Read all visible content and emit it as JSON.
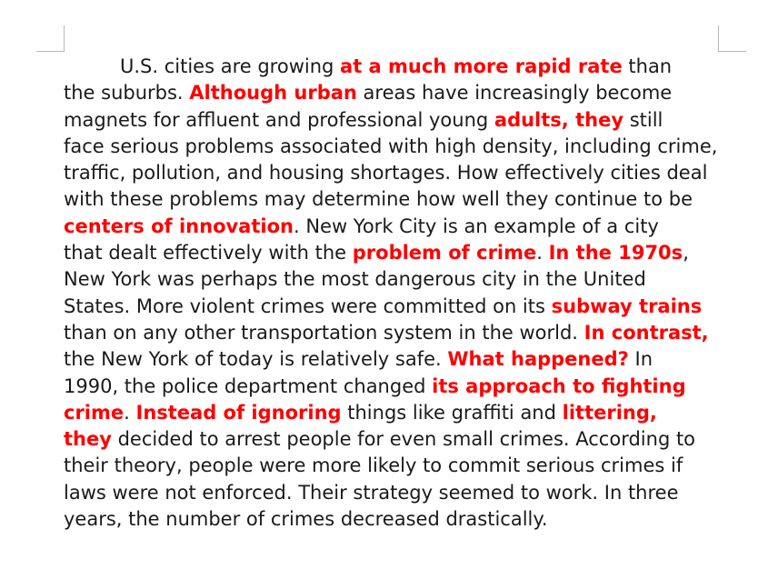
{
  "document": {
    "lines": [
      [
        {
          "t": "U.S. cities are growing "
        },
        {
          "t": "at a much more rapid rate",
          "h": true
        },
        {
          "t": " than"
        }
      ],
      [
        {
          "t": "the suburbs. "
        },
        {
          "t": "Although urban",
          "h": true
        },
        {
          "t": " areas have increasingly become"
        }
      ],
      [
        {
          "t": "magnets for affluent and professional young "
        },
        {
          "t": "adults, they",
          "h": true
        },
        {
          "t": " still"
        }
      ],
      [
        {
          "t": "face serious problems associated with high density, including crime,"
        }
      ],
      [
        {
          "t": "traffic, pollution, and housing shortages. How effectively cities deal"
        }
      ],
      [
        {
          "t": "with these problems may determine how well they continue to be"
        }
      ],
      [
        {
          "t": "centers of innovation",
          "h": true
        },
        {
          "t": ". New York City is an example of a city"
        }
      ],
      [
        {
          "t": "that dealt effectively with the "
        },
        {
          "t": "problem of crime",
          "h": true
        },
        {
          "t": ". "
        },
        {
          "t": "In the 1970s",
          "h": true
        },
        {
          "t": ","
        }
      ],
      [
        {
          "t": "New York was perhaps the most dangerous city in the United"
        }
      ],
      [
        {
          "t": "States. More violent crimes were committed on its "
        },
        {
          "t": "subway trains",
          "h": true
        }
      ],
      [
        {
          "t": "than on any other transportation system in the world. "
        },
        {
          "t": "In contrast,",
          "h": true
        }
      ],
      [
        {
          "t": "the New York of today is relatively safe. "
        },
        {
          "t": "What happened?",
          "h": true
        },
        {
          "t": " In"
        }
      ],
      [
        {
          "t": "1990, the police department changed "
        },
        {
          "t": "its approach to fighting",
          "h": true
        }
      ],
      [
        {
          "t": "crime",
          "h": true
        },
        {
          "t": ". "
        },
        {
          "t": "Instead of ignoring",
          "h": true
        },
        {
          "t": " things like graffiti and "
        },
        {
          "t": "littering,",
          "h": true
        }
      ],
      [
        {
          "t": "they",
          "h": true
        },
        {
          "t": " decided to arrest people for even small crimes. According to"
        }
      ],
      [
        {
          "t": "their theory, people were more likely to commit serious crimes if"
        }
      ],
      [
        {
          "t": "laws were not enforced. Their strategy seemed to work. In three"
        }
      ],
      [
        {
          "t": "years, the number of crimes decreased drastically."
        }
      ]
    ],
    "highlight_color": "#ff0000",
    "text_color": "#1a1a1a"
  }
}
